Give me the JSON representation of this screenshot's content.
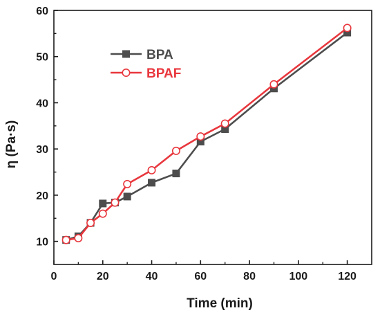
{
  "chart_data": {
    "type": "line",
    "title": "",
    "xlabel": "Time (min)",
    "ylabel": "η (Pa·s)",
    "xlim": [
      0,
      130
    ],
    "ylim": [
      5,
      60
    ],
    "xticks": [
      0,
      20,
      40,
      60,
      80,
      100,
      120
    ],
    "yticks": [
      10,
      20,
      30,
      40,
      50,
      60
    ],
    "xtick_labels": [
      "0",
      "20",
      "40",
      "60",
      "80",
      "100",
      "120"
    ],
    "ytick_labels": [
      "10",
      "20",
      "30",
      "40",
      "50",
      "60"
    ],
    "grid": false,
    "legend_position": "top-left",
    "x": [
      5,
      10,
      15,
      20,
      25,
      30,
      40,
      50,
      60,
      70,
      90,
      120
    ],
    "series": [
      {
        "name": "BPA",
        "color": "#4d4d4d",
        "marker": "filled-square",
        "values": [
          10.3,
          11.1,
          14.0,
          18.2,
          18.4,
          19.7,
          22.7,
          24.7,
          31.6,
          34.3,
          43.1,
          55.2
        ]
      },
      {
        "name": "BPAF",
        "color": "#e8373d",
        "marker": "hollow-circle",
        "values": [
          10.3,
          10.7,
          14.0,
          16.0,
          18.4,
          22.4,
          25.4,
          29.6,
          32.7,
          35.5,
          44.0,
          56.2
        ]
      }
    ]
  }
}
